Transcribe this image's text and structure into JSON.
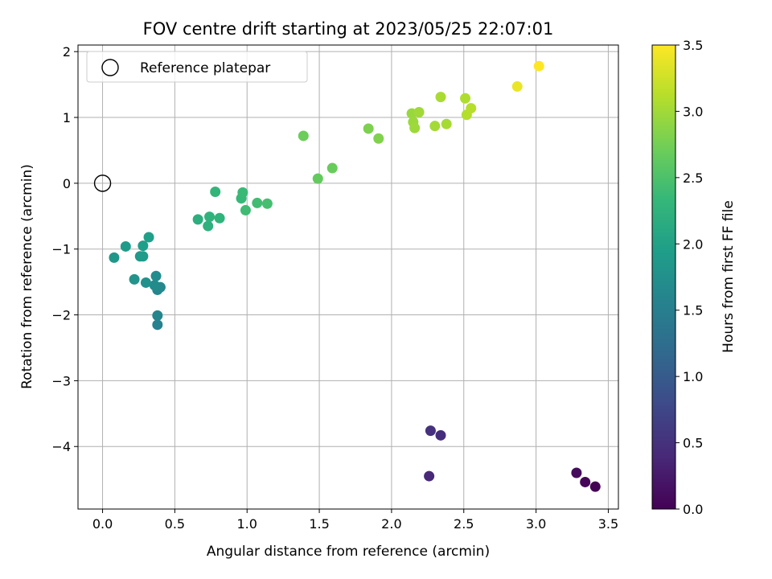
{
  "chart_data": {
    "type": "scatter",
    "title": "FOV centre drift starting at 2023/05/25 22:07:01",
    "xlabel": "Angular distance from reference (arcmin)",
    "ylabel": "Rotation from reference (arcmin)",
    "xlim": [
      -0.17,
      3.57
    ],
    "ylim": [
      -4.95,
      2.1
    ],
    "xticks": [
      0.0,
      0.5,
      1.0,
      1.5,
      2.0,
      2.5,
      3.0,
      3.5
    ],
    "xtick_labels": [
      "0.0",
      "0.5",
      "1.0",
      "1.5",
      "2.0",
      "2.5",
      "3.0",
      "3.5"
    ],
    "yticks": [
      -4,
      -3,
      -2,
      -1,
      0,
      1,
      2
    ],
    "ytick_labels": [
      "−4",
      "−3",
      "−2",
      "−1",
      "0",
      "1",
      "2"
    ],
    "grid": true,
    "legend": {
      "location": "upper-left",
      "entries": [
        "Reference platepar"
      ]
    },
    "reference_point": {
      "x": 0.0,
      "y": 0.0,
      "label": "Reference platepar"
    },
    "colorbar": {
      "label": "Hours from first FF file",
      "range": [
        0.0,
        3.5
      ],
      "ticks": [
        0.0,
        0.5,
        1.0,
        1.5,
        2.0,
        2.5,
        3.0,
        3.5
      ],
      "tick_labels": [
        "0.0",
        "0.5",
        "1.0",
        "1.5",
        "2.0",
        "2.5",
        "3.0",
        "3.5"
      ],
      "colormap": [
        "#440154",
        "#482878",
        "#3e4989",
        "#31688e",
        "#26828e",
        "#1f9e89",
        "#35b779",
        "#6ece58",
        "#b5de2b",
        "#fde725"
      ]
    },
    "points": [
      {
        "x": 3.41,
        "y": -4.61,
        "hours": 0.0
      },
      {
        "x": 3.34,
        "y": -4.54,
        "hours": 0.05
      },
      {
        "x": 3.28,
        "y": -4.4,
        "hours": 0.1
      },
      {
        "x": 2.26,
        "y": -4.45,
        "hours": 0.4
      },
      {
        "x": 2.34,
        "y": -3.83,
        "hours": 0.45
      },
      {
        "x": 2.27,
        "y": -3.76,
        "hours": 0.5
      },
      {
        "x": 0.38,
        "y": -2.15,
        "hours": 1.55
      },
      {
        "x": 0.38,
        "y": -2.01,
        "hours": 1.6
      },
      {
        "x": 0.38,
        "y": -1.62,
        "hours": 1.62
      },
      {
        "x": 0.4,
        "y": -1.58,
        "hours": 1.65
      },
      {
        "x": 0.36,
        "y": -1.55,
        "hours": 1.68
      },
      {
        "x": 0.37,
        "y": -1.41,
        "hours": 1.7
      },
      {
        "x": 0.3,
        "y": -1.51,
        "hours": 1.75
      },
      {
        "x": 0.22,
        "y": -1.46,
        "hours": 1.8
      },
      {
        "x": 0.08,
        "y": -1.13,
        "hours": 1.85
      },
      {
        "x": 0.26,
        "y": -1.11,
        "hours": 1.88
      },
      {
        "x": 0.28,
        "y": -1.11,
        "hours": 1.9
      },
      {
        "x": 0.16,
        "y": -0.96,
        "hours": 1.92
      },
      {
        "x": 0.28,
        "y": -0.95,
        "hours": 1.95
      },
      {
        "x": 0.32,
        "y": -0.82,
        "hours": 1.97
      },
      {
        "x": 0.66,
        "y": -0.55,
        "hours": 2.2
      },
      {
        "x": 0.73,
        "y": -0.65,
        "hours": 2.22
      },
      {
        "x": 0.74,
        "y": -0.51,
        "hours": 2.25
      },
      {
        "x": 0.81,
        "y": -0.53,
        "hours": 2.27
      },
      {
        "x": 0.78,
        "y": -0.13,
        "hours": 2.3
      },
      {
        "x": 0.96,
        "y": -0.23,
        "hours": 2.35
      },
      {
        "x": 0.97,
        "y": -0.14,
        "hours": 2.37
      },
      {
        "x": 0.99,
        "y": -0.41,
        "hours": 2.4
      },
      {
        "x": 1.07,
        "y": -0.3,
        "hours": 2.42
      },
      {
        "x": 1.14,
        "y": -0.31,
        "hours": 2.45
      },
      {
        "x": 1.39,
        "y": 0.72,
        "hours": 2.7
      },
      {
        "x": 1.49,
        "y": 0.07,
        "hours": 2.65
      },
      {
        "x": 1.59,
        "y": 0.23,
        "hours": 2.68
      },
      {
        "x": 1.84,
        "y": 0.83,
        "hours": 2.8
      },
      {
        "x": 1.91,
        "y": 0.68,
        "hours": 2.82
      },
      {
        "x": 2.14,
        "y": 1.06,
        "hours": 2.95
      },
      {
        "x": 2.15,
        "y": 0.93,
        "hours": 2.97
      },
      {
        "x": 2.16,
        "y": 0.84,
        "hours": 2.98
      },
      {
        "x": 2.19,
        "y": 1.08,
        "hours": 3.0
      },
      {
        "x": 2.3,
        "y": 0.87,
        "hours": 3.02
      },
      {
        "x": 2.34,
        "y": 1.31,
        "hours": 3.05
      },
      {
        "x": 2.38,
        "y": 0.9,
        "hours": 3.03
      },
      {
        "x": 2.51,
        "y": 1.29,
        "hours": 3.08
      },
      {
        "x": 2.52,
        "y": 1.04,
        "hours": 3.1
      },
      {
        "x": 2.55,
        "y": 1.14,
        "hours": 3.12
      },
      {
        "x": 2.87,
        "y": 1.47,
        "hours": 3.4
      },
      {
        "x": 3.02,
        "y": 1.78,
        "hours": 3.5
      }
    ]
  }
}
